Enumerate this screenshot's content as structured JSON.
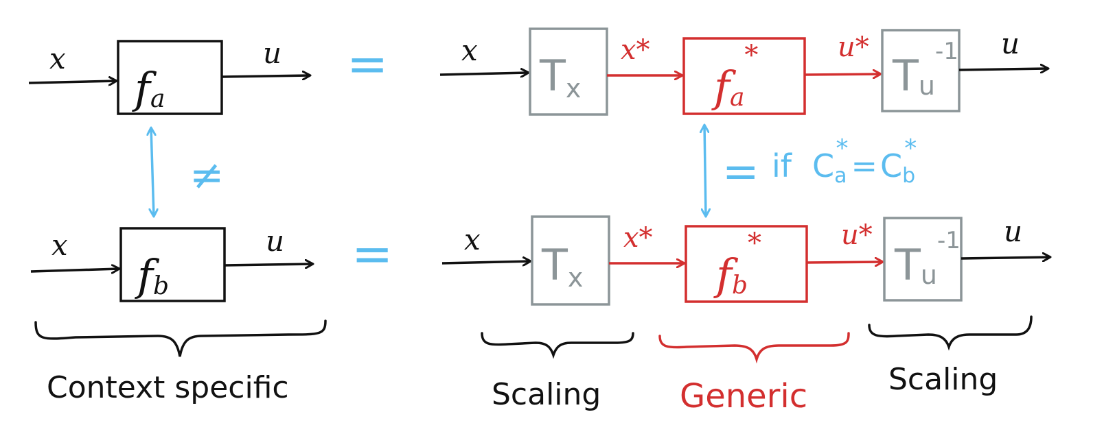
{
  "colors": {
    "ink": "#111111",
    "context_red": "#d32f2f",
    "equal_blue": "#5bbcef",
    "scale_gray": "#8c9598"
  },
  "left": {
    "top": {
      "input": "x",
      "block": "f",
      "sub": "a",
      "output": "u"
    },
    "bottom": {
      "input": "x",
      "block": "f",
      "sub": "b",
      "output": "u"
    },
    "relation": "≠",
    "brace_label": "Context specific"
  },
  "equals_sign": "=",
  "right": {
    "top": {
      "input": "x",
      "scale_in": {
        "base": "T",
        "sub": "x"
      },
      "scaled_in": "x*",
      "block": {
        "base": "f",
        "sub": "a",
        "sup": "*"
      },
      "scaled_out": "u*",
      "scale_out": {
        "base": "T",
        "sub": "u",
        "sup": "-1"
      },
      "output": "u"
    },
    "bottom": {
      "input": "x",
      "scale_in": {
        "base": "T",
        "sub": "x"
      },
      "scaled_in": "x*",
      "block": {
        "base": "f",
        "sub": "b",
        "sup": "*"
      },
      "scaled_out": "u*",
      "scale_out": {
        "base": "T",
        "sub": "u",
        "sup": "-1"
      },
      "output": "u"
    },
    "relation": "=",
    "condition": {
      "prefix": "if",
      "lhs_base": "C",
      "lhs_sub": "a",
      "rhs_base": "C",
      "rhs_sub": "b",
      "star": "*",
      "eq": "="
    },
    "brace_labels": {
      "left": "Scaling",
      "middle": "Generic",
      "right": "Scaling"
    }
  }
}
